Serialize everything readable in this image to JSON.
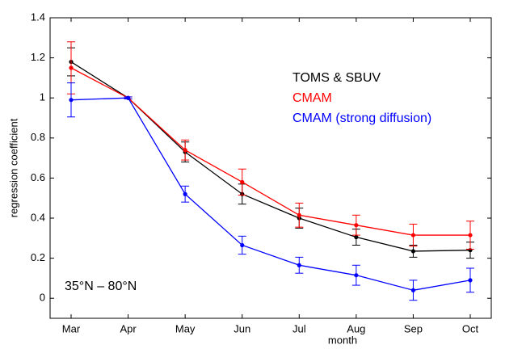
{
  "chart_data": {
    "type": "line",
    "x_label": "month",
    "y_label": "regression coefficient",
    "annotation": "35°N – 80°N",
    "categories": [
      "Mar",
      "Apr",
      "May",
      "Jun",
      "Jul",
      "Aug",
      "Sep",
      "Oct"
    ],
    "ylim": [
      -0.1,
      1.4
    ],
    "yticks": [
      0,
      0.2,
      0.4,
      0.6,
      0.8,
      1,
      1.2,
      1.4
    ],
    "grid": false,
    "series": [
      {
        "name": "TOMS & SBUV",
        "color": "#000000",
        "values": [
          1.18,
          1.0,
          0.73,
          0.52,
          0.4,
          0.305,
          0.235,
          0.24
        ],
        "errors": [
          0.07,
          0.005,
          0.05,
          0.05,
          0.05,
          0.04,
          0.03,
          0.04
        ]
      },
      {
        "name": "CMAM",
        "color": "#ff0000",
        "values": [
          1.15,
          1.0,
          0.74,
          0.58,
          0.415,
          0.365,
          0.315,
          0.315
        ],
        "errors": [
          0.13,
          0.005,
          0.05,
          0.065,
          0.06,
          0.05,
          0.055,
          0.07
        ]
      },
      {
        "name": "CMAM (strong diffusion)",
        "color": "#0000ff",
        "values": [
          0.99,
          1.0,
          0.52,
          0.265,
          0.165,
          0.115,
          0.04,
          0.09
        ],
        "errors": [
          0.085,
          0.005,
          0.04,
          0.045,
          0.04,
          0.05,
          0.05,
          0.06
        ]
      }
    ]
  }
}
